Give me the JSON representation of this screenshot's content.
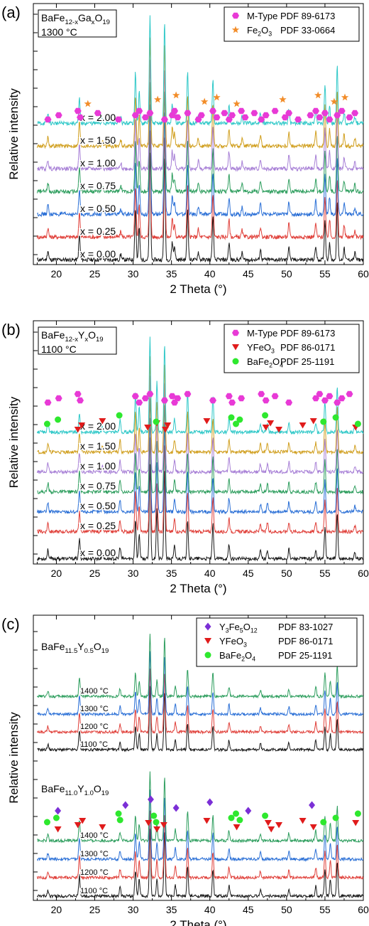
{
  "figure": {
    "panels": [
      {
        "id": "a",
        "label": "(a)",
        "title_lines": [
          {
            "base": "BaFe",
            "sub": "12-x",
            "mid": "Ga",
            "sub2": "x",
            "end": "O",
            "sub3": "19"
          },
          {
            "text": "1300 °C"
          }
        ],
        "xlabel": "2 Theta (°)",
        "ylabel": "Relative intensity",
        "legend": [
          {
            "marker": "hexagon",
            "color": "#e83ad6",
            "name": "M-Type",
            "pdf": "PDF 89-6173"
          },
          {
            "marker": "star",
            "color": "#f28c28",
            "name_base": "Fe",
            "name_sub": "2",
            "name_mid": "O",
            "name_sub2": "3",
            "pdf": "PDF 33-0664"
          }
        ],
        "traces": [
          "x = 0.00",
          "x = 0.25",
          "x = 0.50",
          "x = 0.75",
          "x = 1.00",
          "x = 1.50",
          "x = 2.00"
        ]
      },
      {
        "id": "b",
        "label": "(b)",
        "title_lines": [
          {
            "base": "BaFe",
            "sub": "12-x",
            "mid": "Y",
            "sub2": "x",
            "end": "O",
            "sub3": "19"
          },
          {
            "text": "1100 °C"
          }
        ],
        "xlabel": "2 Theta (°)",
        "ylabel": "Relative intensity",
        "legend": [
          {
            "marker": "hexagon",
            "color": "#e83ad6",
            "name": "M-Type",
            "pdf": "PDF 89-6173"
          },
          {
            "marker": "triangle",
            "color": "#e01b1b",
            "name_base": "YFeO",
            "name_sub": "3",
            "pdf": "PDF 86-0171"
          },
          {
            "marker": "circle",
            "color": "#2ee82e",
            "name_base": "BaFe",
            "name_sub": "2",
            "name_mid": "O",
            "name_sub2": "4",
            "pdf": "PDF 25-1191"
          }
        ],
        "traces": [
          "x = 0.00",
          "x = 0.25",
          "x = 0.50",
          "x = 0.75",
          "x = 1.00",
          "x = 1.50",
          "x = 2.00"
        ]
      },
      {
        "id": "c",
        "label": "(c)",
        "title_lines": [
          {
            "base": "BaFe",
            "sub": "11.5",
            "mid": "Y",
            "sub2": "0.5",
            "end": "O",
            "sub3": "19"
          },
          {
            "base": "BaFe",
            "sub": "11.0",
            "mid": "Y",
            "sub2": "1.0",
            "end": "O",
            "sub3": "19"
          }
        ],
        "xlabel": "2 Theta (°)",
        "ylabel": "Relative intensity",
        "legend": [
          {
            "marker": "diamond",
            "color": "#7b2fd6",
            "name_base": "Y",
            "name_sub": "3",
            "name_mid": "Fe",
            "name_sub2": "5",
            "name_end": "O",
            "name_sub3": "12",
            "pdf": "PDF 83-1027"
          },
          {
            "marker": "triangle",
            "color": "#e01b1b",
            "name_base": "YFeO",
            "name_sub": "3",
            "pdf": "PDF 86-0171"
          },
          {
            "marker": "circle",
            "color": "#2ee82e",
            "name_base": "BaFe",
            "name_sub": "2",
            "name_mid": "O",
            "name_sub2": "4",
            "pdf": "PDF 25-1191"
          }
        ],
        "traces_top": [
          "1100 °C",
          "1200 °C",
          "1300 °C",
          "1400 °C"
        ],
        "traces_bottom": [
          "1100 °C",
          "1200 °C",
          "1300 °C",
          "1400 °C"
        ]
      }
    ]
  },
  "chart_data": [
    {
      "type": "line",
      "xlabel": "2 Theta (°)",
      "ylabel": "Relative intensity",
      "xlim": [
        17,
        60
      ],
      "xticks": [
        20,
        25,
        30,
        35,
        40,
        45,
        50,
        55,
        60
      ],
      "series_colors": [
        "#1a1a1a",
        "#e0403a",
        "#2a6fd6",
        "#2e9e5e",
        "#a77fd6",
        "#d1a021",
        "#2fc8c8"
      ],
      "series": [
        {
          "name": "x = 0.00"
        },
        {
          "name": "x = 0.25"
        },
        {
          "name": "x = 0.50"
        },
        {
          "name": "x = 0.75"
        },
        {
          "name": "x = 1.00"
        },
        {
          "name": "x = 1.50"
        },
        {
          "name": "x = 2.00"
        }
      ],
      "peaks": [
        {
          "x": 18.9,
          "h": 0.8
        },
        {
          "x": 23.0,
          "h": 2.2
        },
        {
          "x": 26.0,
          "h": 0.4
        },
        {
          "x": 28.4,
          "h": 0.5
        },
        {
          "x": 30.3,
          "h": 4.5
        },
        {
          "x": 30.8,
          "h": 2.8
        },
        {
          "x": 32.2,
          "h": 9.5
        },
        {
          "x": 34.1,
          "h": 9.0
        },
        {
          "x": 35.1,
          "h": 1.6
        },
        {
          "x": 35.4,
          "h": 1.2
        },
        {
          "x": 37.1,
          "h": 4.5
        },
        {
          "x": 38.5,
          "h": 0.7
        },
        {
          "x": 40.4,
          "h": 3.8
        },
        {
          "x": 42.5,
          "h": 1.5
        },
        {
          "x": 44.2,
          "h": 0.6
        },
        {
          "x": 46.6,
          "h": 0.9
        },
        {
          "x": 50.3,
          "h": 1.2
        },
        {
          "x": 53.8,
          "h": 1.2
        },
        {
          "x": 55.0,
          "h": 3.5
        },
        {
          "x": 55.6,
          "h": 1.5
        },
        {
          "x": 56.6,
          "h": 5.0
        },
        {
          "x": 57.5,
          "h": 1.0
        },
        {
          "x": 58.9,
          "h": 0.6
        }
      ],
      "markers": {
        "M-Type": [
          18.9,
          20.3,
          22.8,
          23.1,
          25.4,
          28.1,
          30.3,
          30.8,
          31.6,
          32.2,
          34.1,
          35.1,
          35.4,
          35.8,
          37.1,
          38.5,
          38.9,
          40.4,
          40.9,
          41.9,
          42.5,
          42.9,
          44.1,
          44.6,
          45.8,
          46.7,
          47.3,
          48.5,
          49.8,
          50.3,
          51.5,
          53.1,
          53.8,
          54.3,
          55.0,
          55.6,
          56.6,
          57.2,
          58.2,
          58.9
        ],
        "Fe2O3": [
          24.1,
          33.2,
          35.6,
          39.3,
          40.9,
          43.5,
          49.5,
          54.1,
          56.2,
          57.6
        ]
      }
    },
    {
      "type": "line",
      "xlabel": "2 Theta (°)",
      "ylabel": "Relative intensity",
      "xlim": [
        17,
        60
      ],
      "xticks": [
        20,
        25,
        30,
        35,
        40,
        45,
        50,
        55,
        60
      ],
      "series_colors": [
        "#1a1a1a",
        "#e0403a",
        "#2a6fd6",
        "#2e9e5e",
        "#a77fd6",
        "#d1a021",
        "#2fc8c8"
      ],
      "series": [
        {
          "name": "x = 0.00"
        },
        {
          "name": "x = 0.25"
        },
        {
          "name": "x = 0.50"
        },
        {
          "name": "x = 0.75"
        },
        {
          "name": "x = 1.00"
        },
        {
          "name": "x = 1.50"
        },
        {
          "name": "x = 2.00"
        }
      ],
      "peaks": [
        {
          "x": 18.9,
          "h": 0.9
        },
        {
          "x": 23.0,
          "h": 2.0
        },
        {
          "x": 26.0,
          "h": 0.6
        },
        {
          "x": 28.3,
          "h": 1.2
        },
        {
          "x": 30.3,
          "h": 4.0
        },
        {
          "x": 30.8,
          "h": 2.5
        },
        {
          "x": 32.2,
          "h": 9.5
        },
        {
          "x": 33.1,
          "h": 5.0
        },
        {
          "x": 34.1,
          "h": 9.0
        },
        {
          "x": 35.4,
          "h": 1.3
        },
        {
          "x": 37.1,
          "h": 4.0
        },
        {
          "x": 40.4,
          "h": 3.5
        },
        {
          "x": 42.5,
          "h": 1.4
        },
        {
          "x": 46.6,
          "h": 0.8
        },
        {
          "x": 47.5,
          "h": 0.9
        },
        {
          "x": 50.3,
          "h": 1.0
        },
        {
          "x": 53.8,
          "h": 1.0
        },
        {
          "x": 55.0,
          "h": 3.2
        },
        {
          "x": 56.6,
          "h": 4.5
        },
        {
          "x": 58.9,
          "h": 0.6
        }
      ],
      "markers": {
        "M-Type": [
          18.9,
          20.3,
          22.8,
          23.1,
          30.3,
          30.8,
          31.6,
          32.2,
          34.1,
          35.1,
          35.4,
          35.8,
          37.1,
          40.4,
          42.5,
          42.9,
          44.1,
          46.7,
          47.3,
          48.5,
          50.3,
          53.8,
          54.3,
          55.0,
          55.6,
          56.6,
          57.2,
          58.2
        ],
        "YFeO3": [
          22.8,
          23.3,
          26.0,
          31.9,
          33.1,
          34.2,
          34.5,
          39.6,
          47.3,
          47.9,
          49.0,
          52.1,
          53.5,
          59.0
        ],
        "BaFe2O4": [
          18.8,
          20.2,
          28.2,
          33.0,
          42.8,
          43.4,
          43.9,
          47.2,
          54.8,
          56.4,
          59.3
        ]
      }
    },
    {
      "type": "line",
      "xlabel": "2 Theta (°)",
      "ylabel": "Relative intensity",
      "xlim": [
        17,
        60
      ],
      "xticks": [
        20,
        25,
        30,
        35,
        40,
        45,
        50,
        55,
        60
      ],
      "series_colors": [
        "#1a1a1a",
        "#e0403a",
        "#2a6fd6",
        "#2e9e5e"
      ],
      "series": [
        {
          "name": "1100 °C"
        },
        {
          "name": "1200 °C"
        },
        {
          "name": "1300 °C"
        },
        {
          "name": "1400 °C"
        }
      ],
      "peaks": [
        {
          "x": 18.9,
          "h": 0.7
        },
        {
          "x": 23.0,
          "h": 2.5
        },
        {
          "x": 28.3,
          "h": 1.0
        },
        {
          "x": 30.3,
          "h": 3.0
        },
        {
          "x": 30.8,
          "h": 2.0
        },
        {
          "x": 32.2,
          "h": 8.0
        },
        {
          "x": 33.1,
          "h": 2.0
        },
        {
          "x": 34.1,
          "h": 7.5
        },
        {
          "x": 35.5,
          "h": 1.3
        },
        {
          "x": 37.1,
          "h": 3.5
        },
        {
          "x": 40.4,
          "h": 3.0
        },
        {
          "x": 42.5,
          "h": 1.2
        },
        {
          "x": 46.6,
          "h": 0.8
        },
        {
          "x": 50.3,
          "h": 0.9
        },
        {
          "x": 53.8,
          "h": 1.2
        },
        {
          "x": 55.0,
          "h": 3.0
        },
        {
          "x": 55.7,
          "h": 2.0
        },
        {
          "x": 56.6,
          "h": 4.0
        }
      ],
      "markers": {
        "Y3Fe5O12": [
          20.2,
          29.0,
          32.3,
          35.6,
          40.0,
          45.0,
          53.3
        ],
        "YFeO3": [
          20.2,
          22.8,
          23.4,
          26.0,
          32.0,
          33.1,
          34.0,
          39.6,
          43.5,
          47.6,
          48.0,
          49.0,
          52.1,
          53.5,
          59.0
        ],
        "BaFe2O4": [
          18.8,
          20.0,
          28.1,
          28.3,
          32.7,
          33.0,
          42.8,
          43.4,
          43.9,
          47.2,
          54.8,
          56.4,
          59.3
        ]
      }
    }
  ]
}
